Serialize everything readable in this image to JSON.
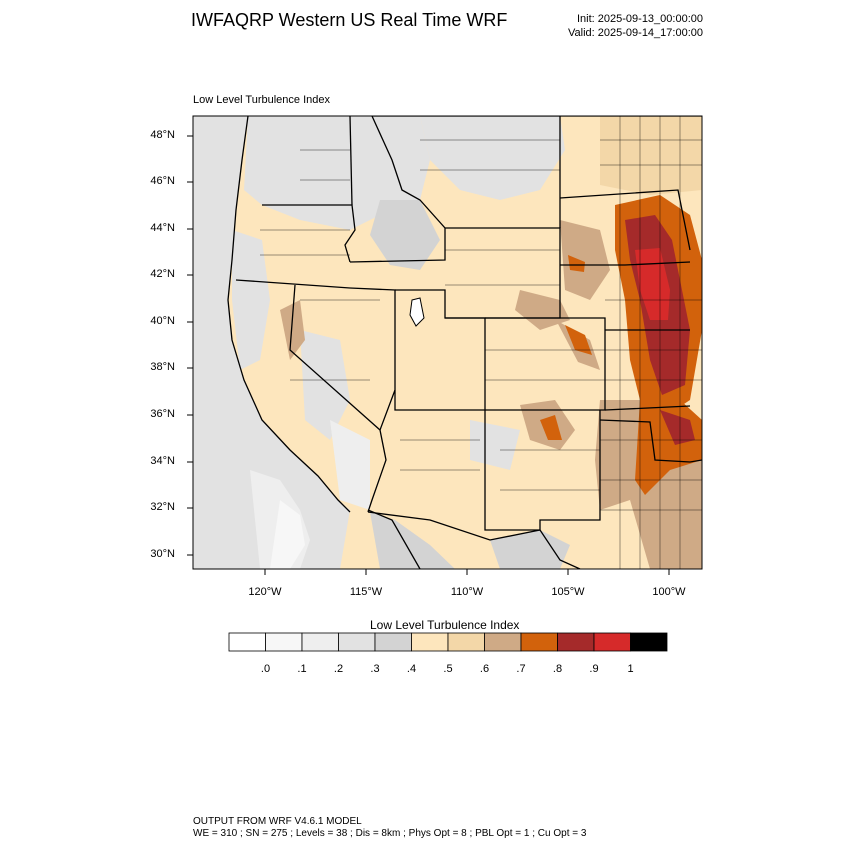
{
  "header": {
    "title": "IWFAQRP Western US Real Time WRF",
    "init": "Init: 2025-09-13_00:00:00",
    "valid": "Valid: 2025-09-14_17:00:00"
  },
  "panel": {
    "title": "Low Level Turbulence Index",
    "lat_labels": [
      "48°N",
      "46°N",
      "44°N",
      "42°N",
      "40°N",
      "38°N",
      "36°N",
      "34°N",
      "32°N",
      "30°N"
    ],
    "lon_labels": [
      "120°W",
      "115°W",
      "110°W",
      "105°W",
      "100°W"
    ]
  },
  "colorbar": {
    "title": "Low Level Turbulence Index",
    "colors": [
      "#ffffff",
      "#f7f7f7",
      "#eeeeee",
      "#e2e2e2",
      "#d3d3d3",
      "#fde6bd",
      "#f3d7a8",
      "#cfaa86",
      "#d2620c",
      "#a52a2a",
      "#d62a2a",
      "#000000"
    ],
    "labels": [
      ".0",
      ".1",
      ".2",
      ".3",
      ".4",
      ".5",
      ".6",
      ".7",
      ".8",
      ".9",
      "1"
    ]
  },
  "footer": {
    "line1": "OUTPUT FROM WRF V4.6.1 MODEL",
    "line2": "WE = 310 ; SN = 275 ; Levels = 38 ; Dis = 8km ; Phys Opt = 8 ; PBL Opt = 1 ; Cu Opt = 3"
  }
}
